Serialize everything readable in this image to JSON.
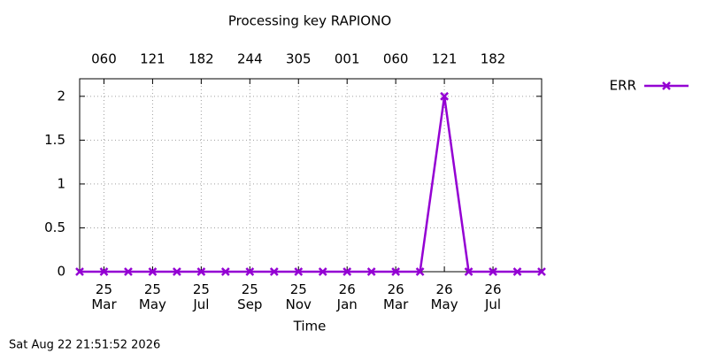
{
  "chart_data": {
    "type": "line",
    "title": "Processing key RAPIONO",
    "xlabel": "Time",
    "footer": "Sat Aug 22 21:51:52 2026",
    "x": [
      "2025-02",
      "2025-03",
      "2025-04",
      "2025-05",
      "2025-06",
      "2025-07",
      "2025-08",
      "2025-09",
      "2025-10",
      "2025-11",
      "2025-12",
      "2026-01",
      "2026-02",
      "2026-03",
      "2026-04",
      "2026-05",
      "2026-06",
      "2026-07",
      "2026-08",
      "2026-09"
    ],
    "series": [
      {
        "name": "ERR",
        "color": "#9400d3",
        "values": [
          0,
          0,
          0,
          0,
          0,
          0,
          0,
          0,
          0,
          0,
          0,
          0,
          0,
          0,
          0,
          2,
          0,
          0,
          0,
          0
        ]
      }
    ],
    "xlim": [
      "2025-02",
      "2026-09"
    ],
    "xticks": [
      {
        "value": "2025-03",
        "label": "25 Mar"
      },
      {
        "value": "2025-05",
        "label": "25 May"
      },
      {
        "value": "2025-07",
        "label": "25 Jul"
      },
      {
        "value": "2025-09",
        "label": "25 Sep"
      },
      {
        "value": "2025-11",
        "label": "25 Nov"
      },
      {
        "value": "2026-01",
        "label": "26 Jan"
      },
      {
        "value": "2026-03",
        "label": "26 Mar"
      },
      {
        "value": "2026-05",
        "label": "26 May"
      },
      {
        "value": "2026-07",
        "label": "26 Jul"
      }
    ],
    "x2ticks": [
      {
        "value": "2025-03",
        "label": "060"
      },
      {
        "value": "2025-05",
        "label": "121"
      },
      {
        "value": "2025-07",
        "label": "182"
      },
      {
        "value": "2025-09",
        "label": "244"
      },
      {
        "value": "2025-11",
        "label": "305"
      },
      {
        "value": "2026-01",
        "label": "001"
      },
      {
        "value": "2026-03",
        "label": "060"
      },
      {
        "value": "2026-05",
        "label": "121"
      },
      {
        "value": "2026-07",
        "label": "182"
      }
    ],
    "ylim": [
      0,
      2.2
    ],
    "yticks": [
      0,
      0.5,
      1,
      1.5,
      2
    ],
    "grid": true,
    "legend": "top-right"
  }
}
